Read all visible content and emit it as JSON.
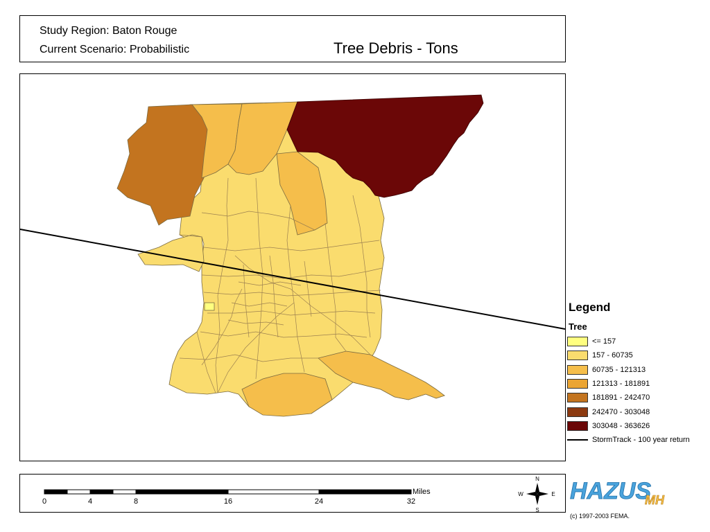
{
  "header": {
    "region": "Study Region: Baton Rouge",
    "scenario": "Current Scenario: Probabilistic",
    "title": "Tree Debris - Tons"
  },
  "legend": {
    "title": "Legend",
    "layer": "Tree",
    "classes": [
      {
        "label": "<=  157",
        "color": "#ffff80"
      },
      {
        "label": " 157 - 60735",
        "color": "#fadc6e"
      },
      {
        "label": "60735 - 121313",
        "color": "#f5be4b"
      },
      {
        "label": "121313 - 181891",
        "color": "#eba533"
      },
      {
        "label": "181891 - 242470",
        "color": "#c3741f"
      },
      {
        "label": "242470 - 303048",
        "color": "#8c3a10"
      },
      {
        "label": "303048 - 363626",
        "color": "#6b0707"
      }
    ],
    "line_entry": "StormTrack - 100 year return"
  },
  "scale_bar": {
    "unit": "Miles",
    "ticks": [
      "0",
      "4",
      "8",
      "16",
      "24",
      "32"
    ]
  },
  "north_arrow": {
    "n": "N",
    "s": "S",
    "e": "E",
    "w": "W"
  },
  "logo": {
    "text": "HAZUS",
    "suffix": "MH"
  },
  "copyright": "(c) 1997-2003 FEMA."
}
